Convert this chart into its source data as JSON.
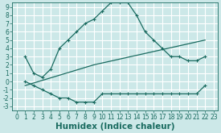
{
  "bg_color": "#cce8e8",
  "grid_color": "#ffffff",
  "line_color": "#1a6b60",
  "xlabel": "Humidex (Indice chaleur)",
  "xlim": [
    -0.5,
    23.5
  ],
  "ylim": [
    -3.5,
    9.5
  ],
  "xticks": [
    0,
    1,
    2,
    3,
    4,
    5,
    6,
    7,
    8,
    9,
    10,
    11,
    12,
    13,
    14,
    15,
    16,
    17,
    18,
    19,
    20,
    21,
    22,
    23
  ],
  "yticks": [
    -3,
    -2,
    -1,
    0,
    1,
    2,
    3,
    4,
    5,
    6,
    7,
    8,
    9
  ],
  "curve1_x": [
    1,
    2,
    3,
    4,
    5,
    6,
    7,
    8,
    9,
    10,
    11,
    12,
    13,
    14,
    15,
    16,
    17,
    18,
    19,
    20,
    21,
    22
  ],
  "curve1_y": [
    3,
    1,
    0.5,
    1.5,
    4,
    5,
    6,
    7,
    7.5,
    8.5,
    9.5,
    9.5,
    9.5,
    8,
    6,
    5,
    4,
    3,
    3,
    2.5,
    2.5,
    3
  ],
  "curve2_x": [
    1,
    2,
    3,
    4,
    5,
    6,
    7,
    8,
    9,
    10,
    11,
    12,
    13,
    14,
    15,
    16,
    17,
    18,
    19,
    20,
    21,
    22
  ],
  "curve2_y": [
    0,
    -0.5,
    -1,
    -1.5,
    -2,
    -2,
    -2.5,
    -2.5,
    -2.5,
    -1.5,
    -1.5,
    -1.5,
    -1.5,
    -1.5,
    -1.5,
    -1.5,
    -1.5,
    -1.5,
    -1.5,
    -1.5,
    -1.5,
    -0.5
  ],
  "curve3_x": [
    1,
    9,
    22
  ],
  "curve3_y": [
    -0.5,
    2,
    5
  ],
  "tick_fontsize": 5.5,
  "xlabel_fontsize": 7.5
}
